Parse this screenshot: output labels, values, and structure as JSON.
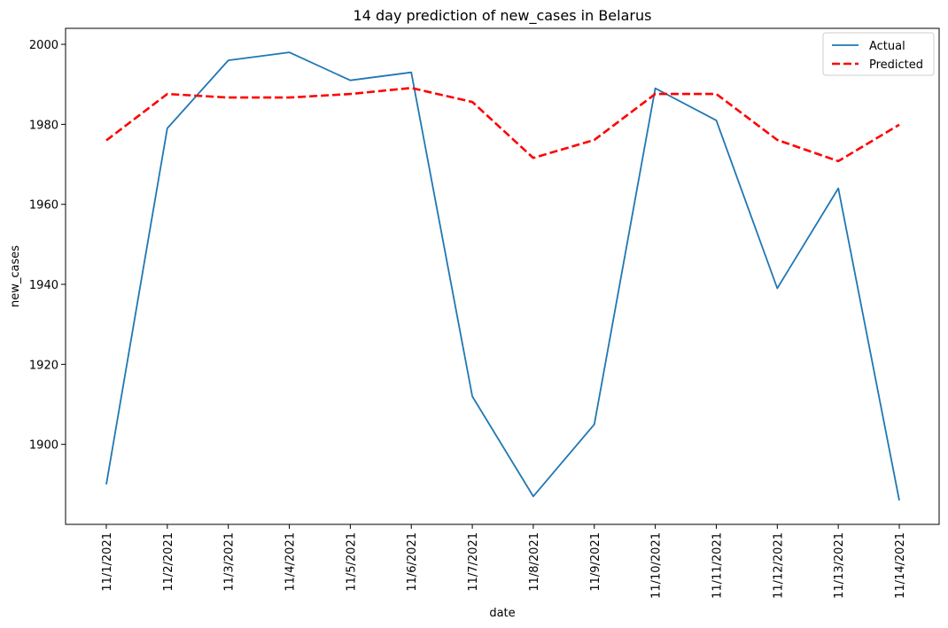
{
  "chart_data": {
    "type": "line",
    "title": "14 day prediction of new_cases in Belarus",
    "xlabel": "date",
    "ylabel": "new_cases",
    "categories": [
      "11/1/2021",
      "11/2/2021",
      "11/3/2021",
      "11/4/2021",
      "11/5/2021",
      "11/6/2021",
      "11/7/2021",
      "11/8/2021",
      "11/9/2021",
      "11/10/2021",
      "11/11/2021",
      "11/12/2021",
      "11/13/2021",
      "11/14/2021"
    ],
    "ylim": [
      1880,
      2004
    ],
    "yticks": [
      1900,
      1920,
      1940,
      1960,
      1980,
      2000
    ],
    "grid": false,
    "legend_position": "top-right",
    "series": [
      {
        "name": "Actual",
        "color": "#1f77b4",
        "style": "solid",
        "values": [
          1890,
          1979,
          1996,
          1998,
          1991,
          1993,
          1912,
          1887,
          1905,
          1989,
          1981,
          1939,
          1964,
          1886
        ]
      },
      {
        "name": "Predicted",
        "color": "#ff0000",
        "style": "dashed",
        "values": [
          1976,
          1987.6,
          1986.7,
          1986.7,
          1987.6,
          1989.1,
          1985.6,
          1971.6,
          1976.1,
          1987.6,
          1987.6,
          1976.1,
          1970.8,
          1979.9
        ]
      }
    ]
  }
}
